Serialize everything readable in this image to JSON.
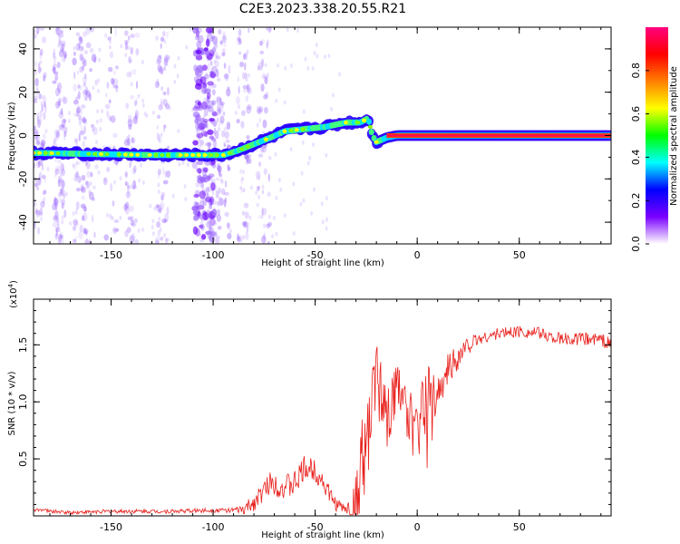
{
  "title": "C2E3.2023.338.20.55.R21",
  "colorbar": {
    "label": "Normalized spectral amplitude",
    "ticks": [
      "0.0",
      "0.2",
      "0.4",
      "0.6",
      "0.8"
    ],
    "tick_values": [
      0.0,
      0.2,
      0.4,
      0.6,
      0.8
    ],
    "range": [
      0.0,
      1.0
    ],
    "colors": [
      "#ffffff",
      "#7a00ff",
      "#0000ff",
      "#00ffff",
      "#00ff00",
      "#ffff00",
      "#ff8000",
      "#ff0000",
      "#ff007f"
    ]
  },
  "chart_data": [
    {
      "type": "heatmap",
      "name": "spectrogram",
      "xlabel": "Height of straight line (km)",
      "ylabel": "Frequency (Hz)",
      "xlim": [
        -188,
        95
      ],
      "ylim": [
        -50,
        50
      ],
      "xticks": [
        "-150",
        "-100",
        "-50",
        "0",
        "50"
      ],
      "xtick_values": [
        -150,
        -100,
        -50,
        0,
        50
      ],
      "yticks": [
        "-40",
        "-20",
        "0",
        "20",
        "40"
      ],
      "ytick_values": [
        -40,
        -20,
        0,
        20,
        40
      ],
      "ridge": {
        "x": [
          -188,
          -160,
          -130,
          -110,
          -95,
          -88,
          -80,
          -72,
          -65,
          -55,
          -45,
          -35,
          -28,
          -24,
          -22,
          -20,
          -15,
          -10,
          0,
          20,
          50,
          95
        ],
        "y": [
          -8,
          -8.5,
          -9,
          -9,
          -9,
          -7,
          -4,
          -1,
          2,
          3,
          4,
          6,
          6,
          8,
          0,
          -3,
          -1,
          0,
          0,
          0,
          0,
          0
        ]
      }
    },
    {
      "type": "line",
      "name": "snr",
      "xlabel": "Height of straight line (km)",
      "ylabel": "SNR (10 * v/v)",
      "y_multiplier": "(x10",
      "y_multiplier_exp": "4",
      "y_multiplier_close": ")",
      "xlim": [
        -188,
        95
      ],
      "ylim": [
        0,
        1.9
      ],
      "xticks": [
        "-150",
        "-100",
        "-50",
        "0",
        "50"
      ],
      "xtick_values": [
        -150,
        -100,
        -50,
        0,
        50
      ],
      "yticks": [
        "0.5",
        "1.0",
        "1.5"
      ],
      "ytick_values": [
        0.5,
        1.0,
        1.5
      ],
      "series_color": "#e8201c",
      "envelope": {
        "x": [
          -188,
          -185,
          -180,
          -170,
          -150,
          -120,
          -100,
          -85,
          -78,
          -72,
          -66,
          -60,
          -55,
          -50,
          -46,
          -42,
          -38,
          -33,
          -30,
          -27,
          -25,
          -23,
          -21,
          -19,
          -17,
          -15,
          -12,
          -9,
          -6,
          -3,
          0,
          3,
          6,
          9,
          12,
          15,
          20,
          25,
          30,
          40,
          50,
          60,
          70,
          80,
          90,
          95
        ],
        "y": [
          0.04,
          0.06,
          0.04,
          0.03,
          0.04,
          0.04,
          0.05,
          0.05,
          0.15,
          0.3,
          0.25,
          0.28,
          0.42,
          0.4,
          0.3,
          0.15,
          0.08,
          0.05,
          0.1,
          0.55,
          0.5,
          0.9,
          1.1,
          1.35,
          1.0,
          0.85,
          0.95,
          1.1,
          0.9,
          0.95,
          0.85,
          1.0,
          1.15,
          1.0,
          1.1,
          1.3,
          1.4,
          1.5,
          1.55,
          1.6,
          1.62,
          1.6,
          1.55,
          1.55,
          1.55,
          1.5
        ]
      },
      "noise": {
        "x": [
          -188,
          -90,
          -80,
          -60,
          -45,
          -35,
          -28,
          -15,
          0,
          15,
          30,
          95
        ],
        "amp": [
          0.015,
          0.02,
          0.08,
          0.12,
          0.1,
          0.04,
          0.35,
          0.3,
          0.25,
          0.15,
          0.05,
          0.06
        ]
      }
    }
  ]
}
